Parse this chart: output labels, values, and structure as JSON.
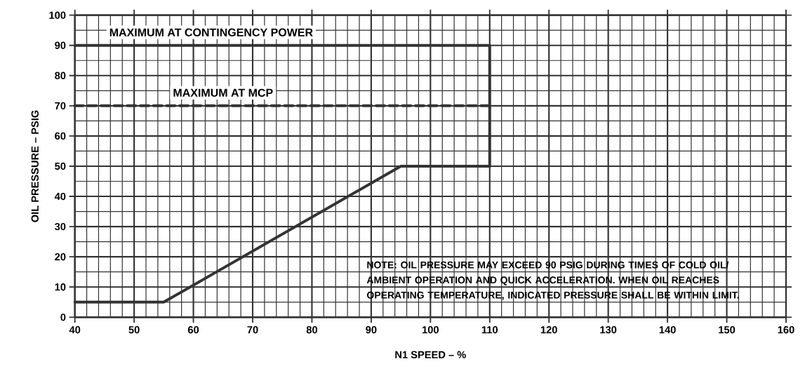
{
  "chart_data": {
    "type": "line",
    "xlabel": "N1 SPEED – %",
    "ylabel": "OIL PRESSURE – PSIG",
    "xlim": [
      40,
      160
    ],
    "ylim": [
      0,
      100
    ],
    "xticks": [
      40,
      50,
      60,
      70,
      80,
      90,
      100,
      110,
      120,
      130,
      140,
      150,
      160
    ],
    "yticks": [
      0,
      10,
      20,
      30,
      40,
      50,
      60,
      70,
      80,
      90,
      100
    ],
    "grid": true,
    "marker": "none",
    "series": [
      {
        "color": "#333333",
        "x": [
          40,
          110,
          110
        ],
        "values": [
          90,
          90,
          50
        ],
        "line_style": "solid"
      },
      {
        "color": "#333333",
        "x": [
          40,
          110
        ],
        "values": [
          70,
          70
        ],
        "line_style": "dashed"
      },
      {
        "color": "#333333",
        "x": [
          40,
          55,
          95,
          110
        ],
        "values": [
          5,
          5,
          50,
          50
        ],
        "line_style": "solid"
      }
    ],
    "annotations": [
      "MAXIMUM AT CONTINGENCY POWER",
      "MAXIMUM AT MCP",
      "NOTE:  OIL PRESSURE MAY EXCEED 90 PSIG DURING TIMES OF COLD OIL/ AMBIENT OPERATION AND QUICK ACCELERATION. WHEN OIL REACHES OPERATING TEMPERATURE, INDICATED PRESSURE SHALL BE WITHIN LIMIT."
    ]
  }
}
